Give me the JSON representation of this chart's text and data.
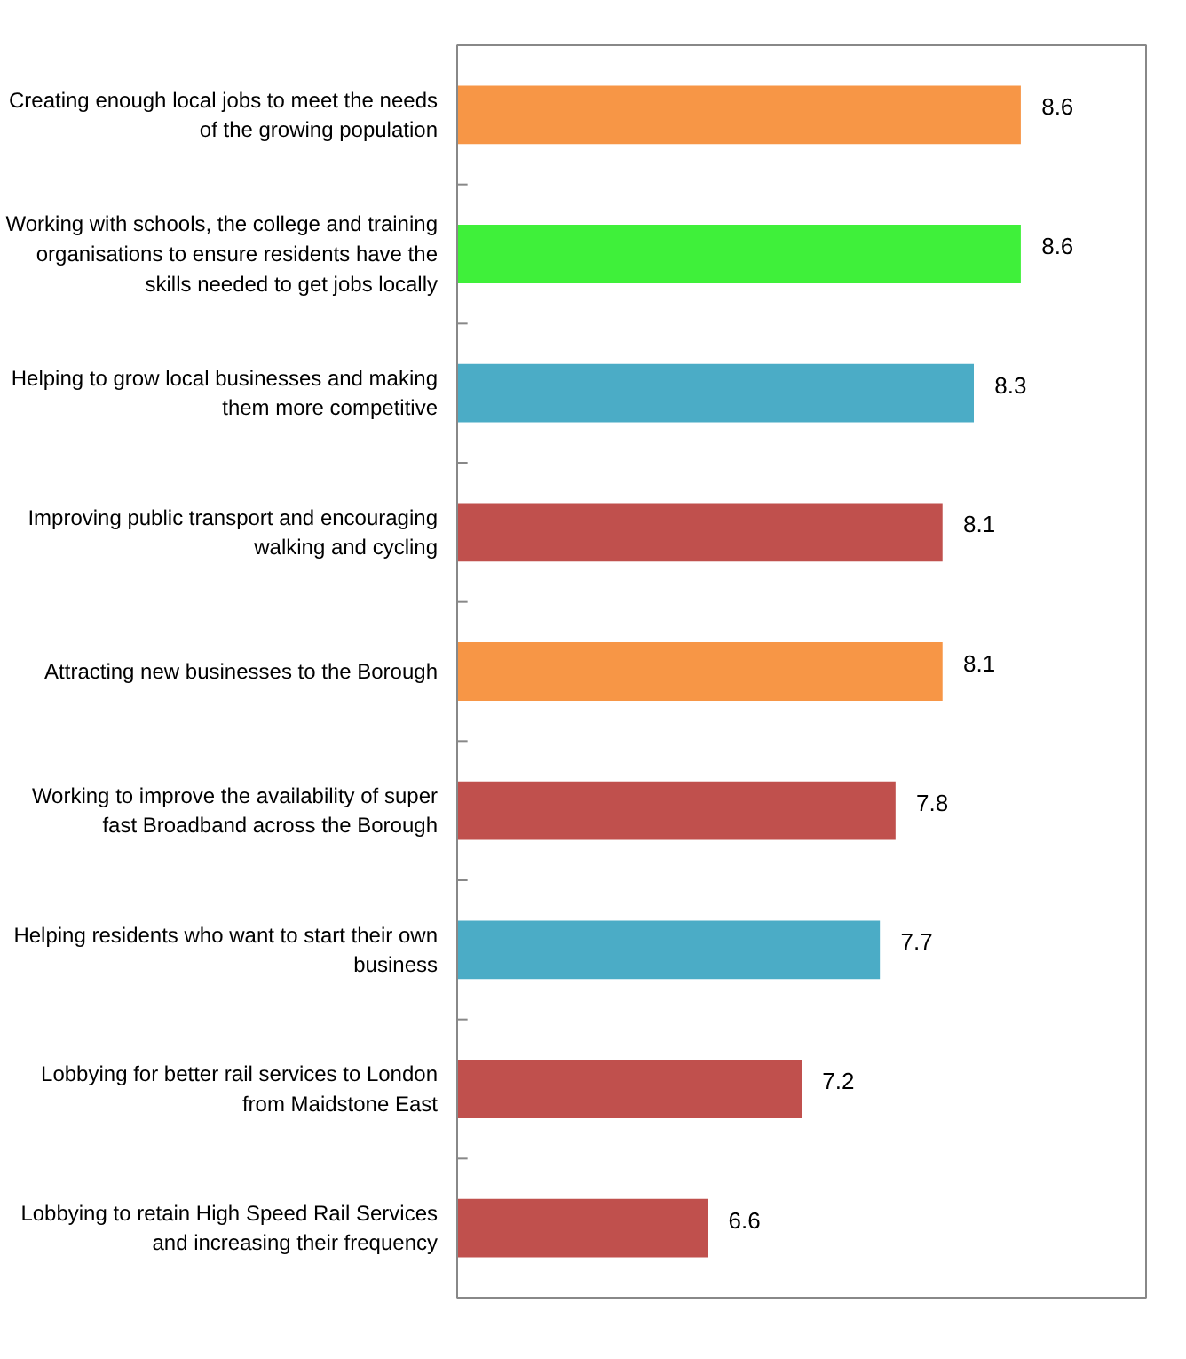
{
  "chart_data": {
    "type": "bar",
    "orientation": "horizontal",
    "categories": [
      "Creating enough local jobs to meet the needs of the growing population",
      "Working with schools, the college and training organisations to ensure residents have the skills needed to get jobs locally",
      "Helping to grow local businesses and making them more competitive",
      "Improving public transport and encouraging walking and cycling",
      "Attracting new businesses to the Borough",
      "Working to improve the availability of super fast Broadband across the Borough",
      "Helping residents who want to start their own business",
      "Lobbying for better rail services to London from Maidstone East",
      "Lobbying to retain High Speed Rail Services and increasing their frequency"
    ],
    "values": [
      8.6,
      8.6,
      8.3,
      8.1,
      8.1,
      7.8,
      7.7,
      7.2,
      6.6
    ],
    "colors": [
      "#f79646",
      "#3ff03a",
      "#4bacc6",
      "#c0504d",
      "#f79646",
      "#c0504d",
      "#4bacc6",
      "#c0504d",
      "#c0504d"
    ],
    "xlim": [
      5,
      9.4
    ],
    "tick_labels": "y",
    "data_labels": true
  }
}
